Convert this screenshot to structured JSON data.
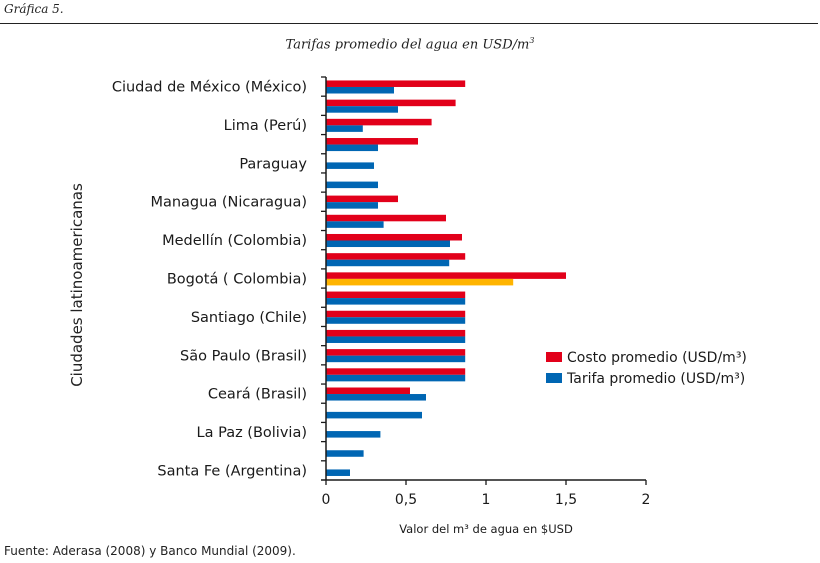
{
  "header": {
    "caption": "Gráfica 5.",
    "title": "Tarifas promedio del agua en USD/m",
    "title_sup": "3"
  },
  "footer": {
    "source": "Fuente: Aderasa (2008) y Banco Mundial (2009)."
  },
  "colors": {
    "costo": "#E2001A",
    "tarifa": "#0066B3",
    "highlight": "#FFB400",
    "axis": "#1a1a1a"
  },
  "chart_data": {
    "type": "bar",
    "orientation": "horizontal",
    "title": "Tarifas promedio del agua en USD/m³",
    "xlabel": "Valor del m³ de agua en $USD",
    "ylabel": "Ciudades latinoamericanas",
    "xlim": [
      0,
      2
    ],
    "xticks": [
      0,
      0.5,
      1,
      1.5,
      2
    ],
    "xtick_labels": [
      "0",
      "0,5",
      "1",
      "1,5",
      "2"
    ],
    "grid": false,
    "legend_position": "right",
    "categories": [
      "Ciudad de México (México)",
      "",
      "Lima (Perú)",
      "",
      "Paraguay",
      "",
      "Managua (Nicaragua)",
      "",
      "Medellín (Colombia)",
      "",
      "Bogotá ( Colombia)",
      "",
      "Santiago (Chile)",
      "",
      "São Paulo (Brasil)",
      "",
      "Ceará (Brasil)",
      "",
      "La Paz (Bolivia)",
      "",
      "Santa Fe (Argentina)"
    ],
    "series": [
      {
        "name": "Costo promedio (USD/m³)",
        "color": "#E2001A",
        "values": [
          0.87,
          0.81,
          0.66,
          0.575,
          null,
          null,
          0.45,
          0.75,
          0.85,
          0.87,
          1.5,
          0.87,
          0.87,
          0.87,
          0.87,
          0.87,
          0.525,
          null,
          null,
          null,
          null
        ]
      },
      {
        "name": "Tarifa promedio (USD/m³)",
        "color": "#0066B3",
        "values": [
          0.425,
          0.45,
          0.23,
          0.325,
          0.3,
          0.325,
          0.325,
          0.36,
          0.775,
          0.77,
          1.17,
          0.87,
          0.87,
          0.87,
          0.87,
          0.87,
          0.625,
          0.6,
          0.34,
          0.235,
          0.15
        ],
        "highlight_index": 10,
        "highlight_color": "#FFB400"
      }
    ]
  }
}
